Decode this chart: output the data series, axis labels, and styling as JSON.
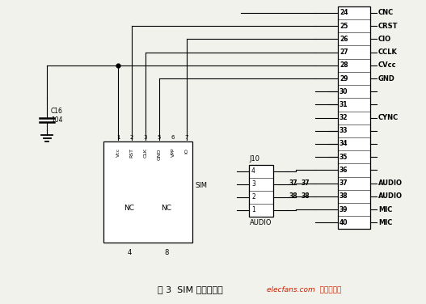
{
  "bg_color": "#f2f2ec",
  "title": "图 3  SIM 卡的连接图",
  "watermark": "elecfans.com  电子发烧友",
  "connector_pins": [
    24,
    25,
    26,
    27,
    28,
    29,
    30,
    31,
    32,
    33,
    34,
    35,
    36,
    37,
    38,
    39,
    40
  ],
  "connector_labels": {
    "24": "CNC",
    "25": "CRST",
    "26": "CIO",
    "27": "CCLK",
    "28": "CVcc",
    "29": "GND",
    "32": "CYNC",
    "37": "AUDIO",
    "38": "AUDIO",
    "39": "MIC",
    "40": "MIC"
  },
  "sim_pins": [
    "Vcc",
    "RST",
    "CLK",
    "GND",
    "VPP",
    "IO"
  ],
  "sim_pin_nums": [
    "1",
    "2",
    "3",
    "5",
    "6",
    "7"
  ],
  "j10_pins": [
    "4",
    "3",
    "2",
    "1"
  ],
  "capacitor_text": "C16\n104",
  "nc_left": "NC",
  "nc_right": "NC",
  "pin4": "4",
  "pin8": "8",
  "sim_label": "SIM",
  "j10_label": "J10",
  "audio_label": "AUDIO"
}
